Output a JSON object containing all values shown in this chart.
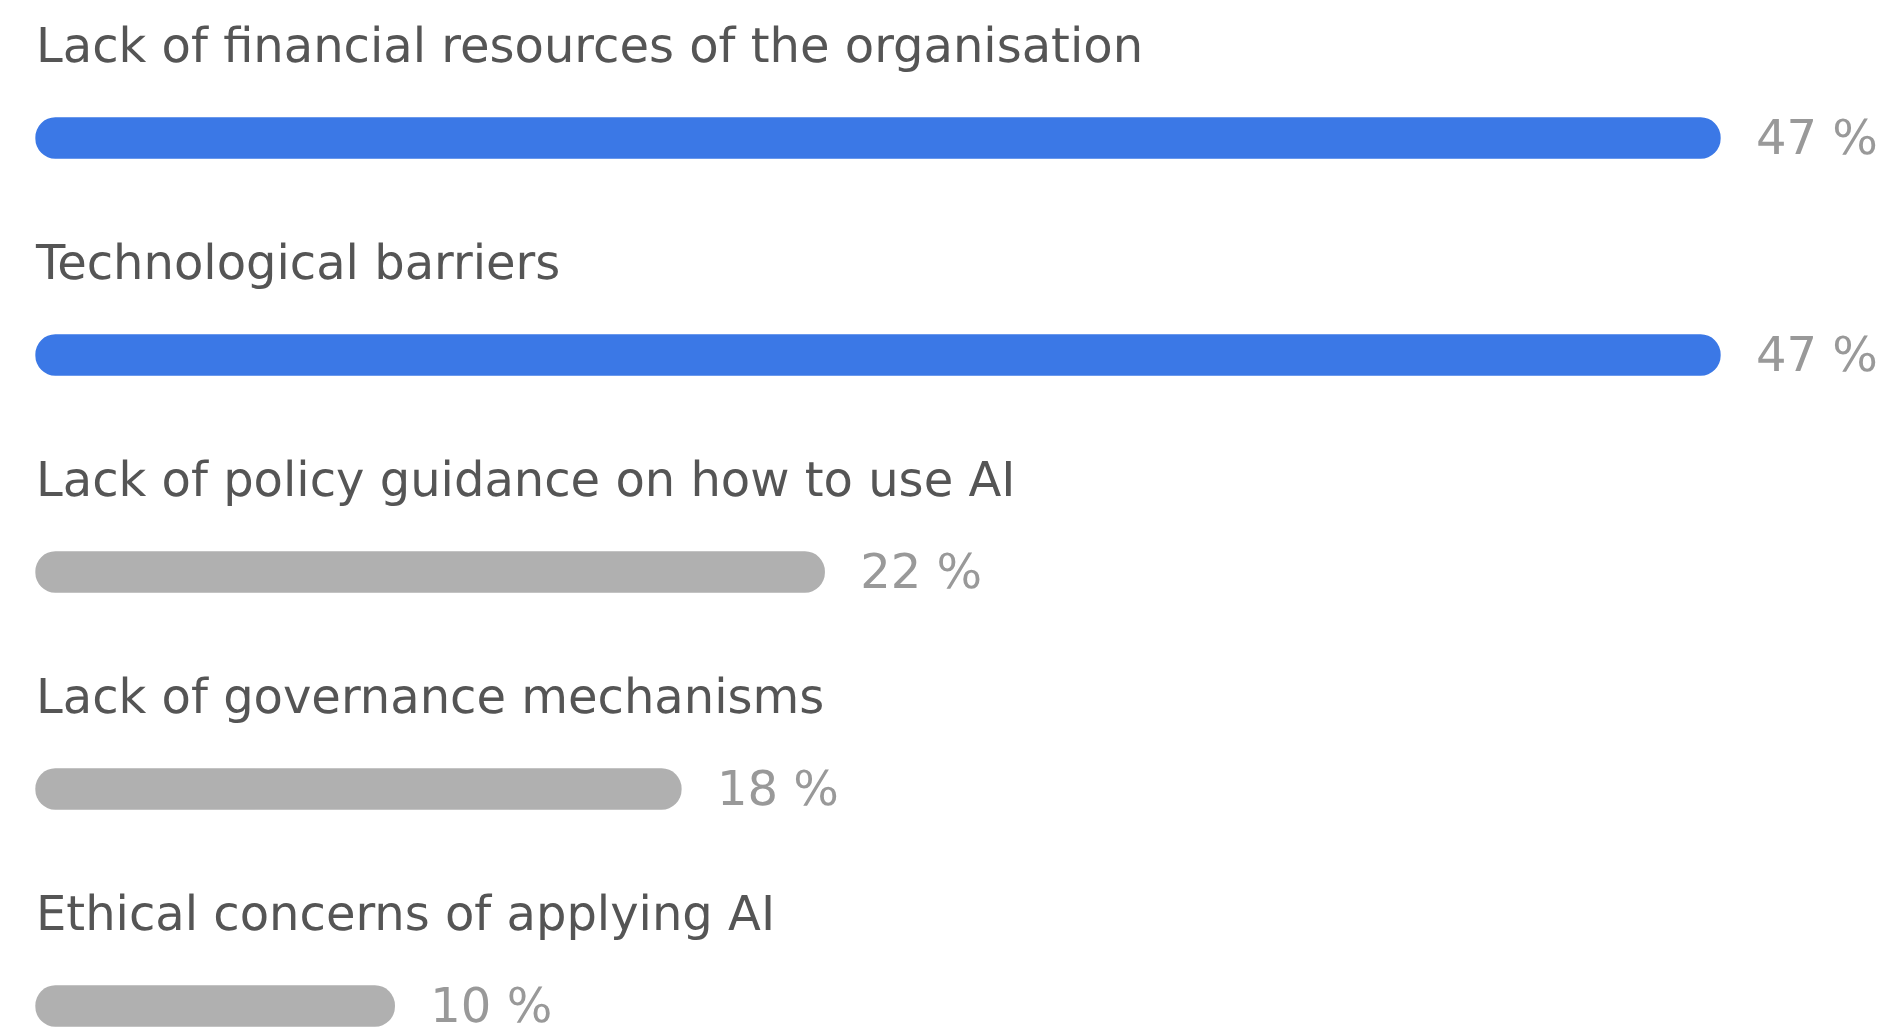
{
  "chart_data": {
    "type": "bar",
    "orientation": "horizontal",
    "categories": [
      "Lack of financial resources of the organisation",
      "Technological barriers",
      "Lack of policy guidance on how to use AI",
      "Lack of governance mechanisms",
      "Ethical concerns of applying AI"
    ],
    "values": [
      47,
      47,
      22,
      18,
      10
    ],
    "colors": [
      "#3b78e6",
      "#3b78e6",
      "#b0b0b0",
      "#b0b0b0",
      "#b0b0b0"
    ],
    "value_labels": [
      "47 %",
      "47 %",
      "22 %",
      "18 %",
      "10 %"
    ],
    "legend": false
  }
}
